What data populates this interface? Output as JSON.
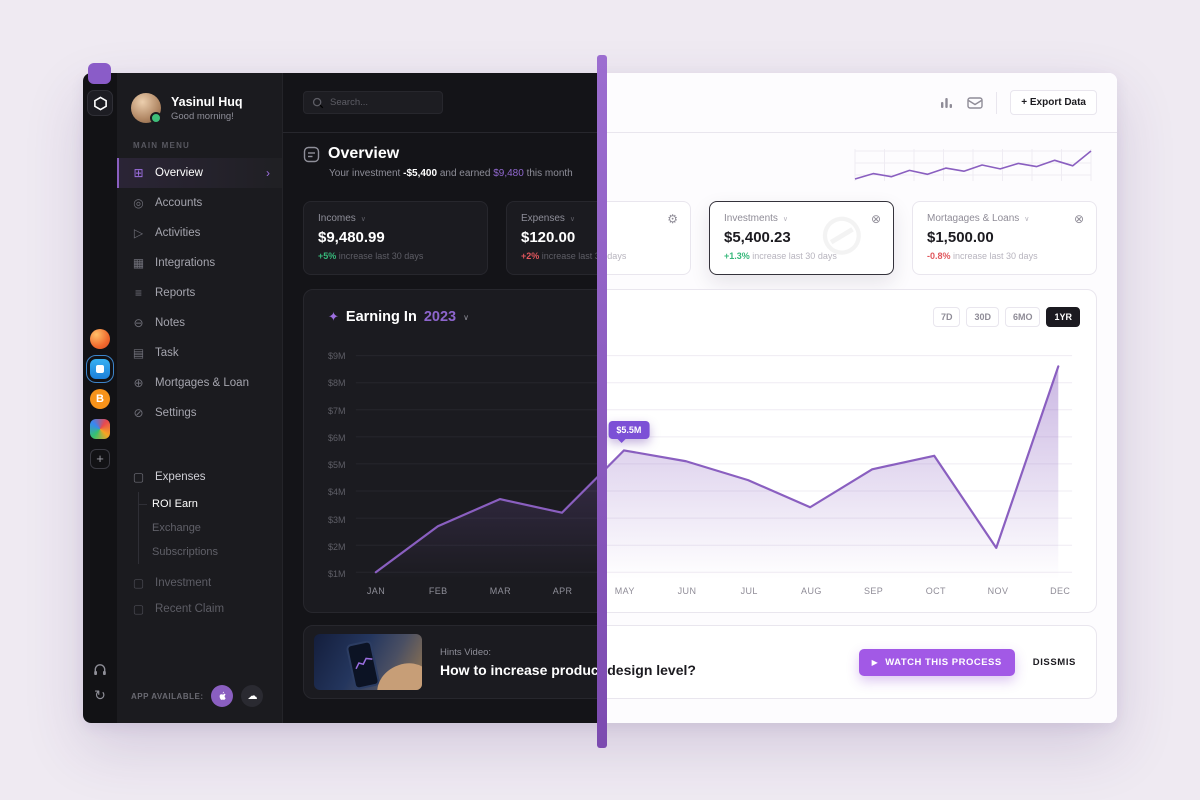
{
  "accent_color": "#8a5fc0",
  "divider_color": "#8a5cc8",
  "icons": {
    "grid": "⊞",
    "coin": "◎",
    "send": "▷",
    "integrations": "▦",
    "reports": "≡",
    "notes": "⊖",
    "task": "▤",
    "globe": "⊕",
    "settings": "⊘",
    "folder": "▢",
    "chevron_down": "∨",
    "chevron_right": "›",
    "gear": "⚙",
    "close_circle": "⊗",
    "watermark": "⊘",
    "sparkle": "✦",
    "play": "▶",
    "cloud": "☁",
    "repeat": "↻",
    "plus": "+",
    "bitcoin": "B"
  },
  "user": {
    "name": "Yasinul Huq",
    "greeting": "Good morning!"
  },
  "sidebar": {
    "section_label": "MAIN MENU",
    "items": [
      {
        "label": "Overview",
        "icon": "grid-icon",
        "active": true
      },
      {
        "label": "Accounts",
        "icon": "coin-icon"
      },
      {
        "label": "Activities",
        "icon": "send-icon"
      },
      {
        "label": "Integrations",
        "icon": "integrations-icon"
      },
      {
        "label": "Reports",
        "icon": "reports-icon"
      },
      {
        "label": "Notes",
        "icon": "notes-icon"
      },
      {
        "label": "Task",
        "icon": "task-icon"
      },
      {
        "label": "Mortgages & Loan",
        "icon": "globe-icon"
      },
      {
        "label": "Settings",
        "icon": "settings-icon"
      }
    ],
    "folders": {
      "expenses": {
        "label": "Expenses",
        "children": [
          "ROI Earn",
          "Exchange",
          "Subscriptions"
        ]
      },
      "investment_label": "Investment",
      "recent_claim_label": "Recent Claim"
    },
    "app_available_label": "APP AVAILABLE:"
  },
  "topbar": {
    "search_placeholder": "Search...",
    "export_label": "+ Export Data"
  },
  "header": {
    "title": "Overview",
    "subtitle_prefix": "Your investment ",
    "subtitle_value1": "-$5,400",
    "subtitle_mid": " and earned ",
    "subtitle_value2": "$9,480",
    "subtitle_suffix": " this month"
  },
  "stats": [
    {
      "label": "Incomes",
      "value": "$9,480.99",
      "delta": "+5%",
      "delta_color": "green",
      "note": " increase last 30 days",
      "icon": ""
    },
    {
      "label": "Expenses",
      "value": "$120.00",
      "delta": "+2%",
      "delta_color": "red",
      "note": " increase last 30 days",
      "icon": "gear-icon"
    },
    {
      "label": "Investments",
      "value": "$5,400.23",
      "delta": "+1.3%",
      "delta_color": "green",
      "note": " increase last 30 days",
      "icon": "close-circle-icon",
      "highlight": true
    },
    {
      "label": "Mortagages & Loans",
      "value": "$1,500.00",
      "delta": "-0.8%",
      "delta_color": "red",
      "note": " increase last 30 days",
      "icon": "close-circle-icon"
    }
  ],
  "chart_data": {
    "type": "area",
    "title_prefix": "Earning In",
    "title_year": "2023",
    "ranges": [
      "7D",
      "30D",
      "6MO",
      "1YR"
    ],
    "active_range": "1YR",
    "categories": [
      "JAN",
      "FEB",
      "MAR",
      "APR",
      "MAY",
      "JUN",
      "JUL",
      "AUG",
      "SEP",
      "OCT",
      "NOV",
      "DEC"
    ],
    "values_musd": [
      1.0,
      2.7,
      3.7,
      3.2,
      5.5,
      5.1,
      4.4,
      3.4,
      4.8,
      5.3,
      1.9,
      8.6
    ],
    "yticks": [
      "$9M",
      "$8M",
      "$7M",
      "$6M",
      "$5M",
      "$4M",
      "$3M",
      "$2M",
      "$1M"
    ],
    "ylim_musd": [
      1,
      9
    ],
    "grid": true,
    "legend": "none",
    "tooltip": {
      "label": "$5.5M",
      "month_index": 4,
      "value_musd": 5.5
    },
    "line_color": "#8a5fc0",
    "sparkline_values": [
      3.2,
      3.9,
      3.5,
      4.3,
      3.8,
      4.6,
      4.2,
      5.0,
      4.5,
      5.2,
      4.8,
      5.6,
      4.9,
      6.8
    ]
  },
  "banner": {
    "kicker": "Hints Video:",
    "title": "How to increase product design level?",
    "watch_label": "WATCH THIS PROCESS",
    "dismiss_label": "DISSMIS"
  }
}
